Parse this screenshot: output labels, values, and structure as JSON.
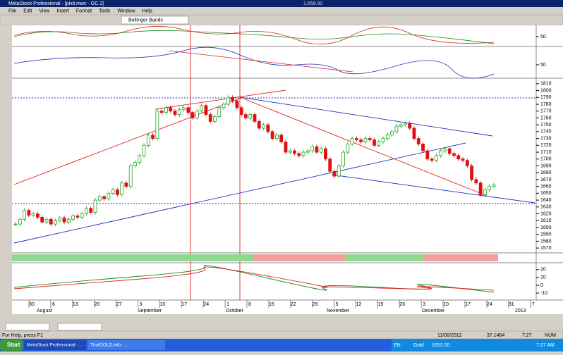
{
  "window": {
    "title": "MetaStock Professional - [pixit.mwc - GC.1]",
    "price": "1,656.90"
  },
  "menu": [
    "File",
    "Edit",
    "View",
    "Insert",
    "Format",
    "Tools",
    "Window",
    "Help"
  ],
  "toolbar": {
    "indicator": "Bollinger Bands"
  },
  "oscillator_ticks": [
    50,
    50
  ],
  "price": {
    "closes": [
      1605,
      1612,
      1625,
      1618,
      1620,
      1615,
      1608,
      1612,
      1605,
      1610,
      1614,
      1608,
      1612,
      1617,
      1615,
      1620,
      1628,
      1622,
      1640,
      1645,
      1642,
      1650,
      1655,
      1648,
      1665,
      1660,
      1690,
      1695,
      1705,
      1720,
      1735,
      1730,
      1770,
      1768,
      1775,
      1770,
      1765,
      1772,
      1775,
      1768,
      1760,
      1770,
      1778,
      1765,
      1755,
      1762,
      1775,
      1780,
      1790,
      1785,
      1775,
      1765,
      1760,
      1765,
      1755,
      1745,
      1750,
      1740,
      1730,
      1735,
      1725,
      1710,
      1712,
      1708,
      1705,
      1710,
      1712,
      1718,
      1710,
      1715,
      1700,
      1682,
      1675,
      1690,
      1710,
      1722,
      1730,
      1728,
      1725,
      1730,
      1728,
      1720,
      1725,
      1730,
      1735,
      1740,
      1748,
      1750,
      1752,
      1745,
      1730,
      1722,
      1712,
      1700,
      1698,
      1705,
      1712,
      1715,
      1708,
      1705,
      1700,
      1698,
      1690,
      1670,
      1665,
      1648,
      1655,
      1660,
      1662
    ],
    "ylim": [
      1565,
      1816
    ],
    "yticks": [
      1810,
      1800,
      1790,
      1780,
      1770,
      1760,
      1750,
      1740,
      1730,
      1720,
      1710,
      1700,
      1690,
      1680,
      1670,
      1660,
      1650,
      1640,
      1630,
      1620,
      1610,
      1600,
      1590,
      1580,
      1570
    ],
    "color_up": "#1fa81f",
    "color_down": "#e01010"
  },
  "macd": {
    "ylim": [
      -18,
      27
    ],
    "yticks": [
      20,
      10,
      0,
      -10
    ]
  },
  "dates": {
    "days": [
      "30",
      "6",
      "13",
      "20",
      "27",
      "3",
      "10",
      "17",
      "24",
      "1",
      "8",
      "15",
      "22",
      "29",
      "5",
      "12",
      "19",
      "26",
      "3",
      "10",
      "17",
      "24",
      "31",
      "7"
    ],
    "months": [
      "August",
      "September",
      "October",
      "November",
      "December",
      "2013"
    ]
  },
  "status": {
    "help": "For Help, press F1",
    "date": "11/06/2012",
    "value": "37.1464",
    "time": "7:27",
    "num": "NUM"
  },
  "taskbar": {
    "start": "Start",
    "app1": "MetaStock Professional - ...",
    "app2": "ThaiGOLD.info - ...",
    "lang": "EN",
    "ticker": "Gold",
    "quote": "1653.00",
    "clock": "7:27 AM"
  }
}
